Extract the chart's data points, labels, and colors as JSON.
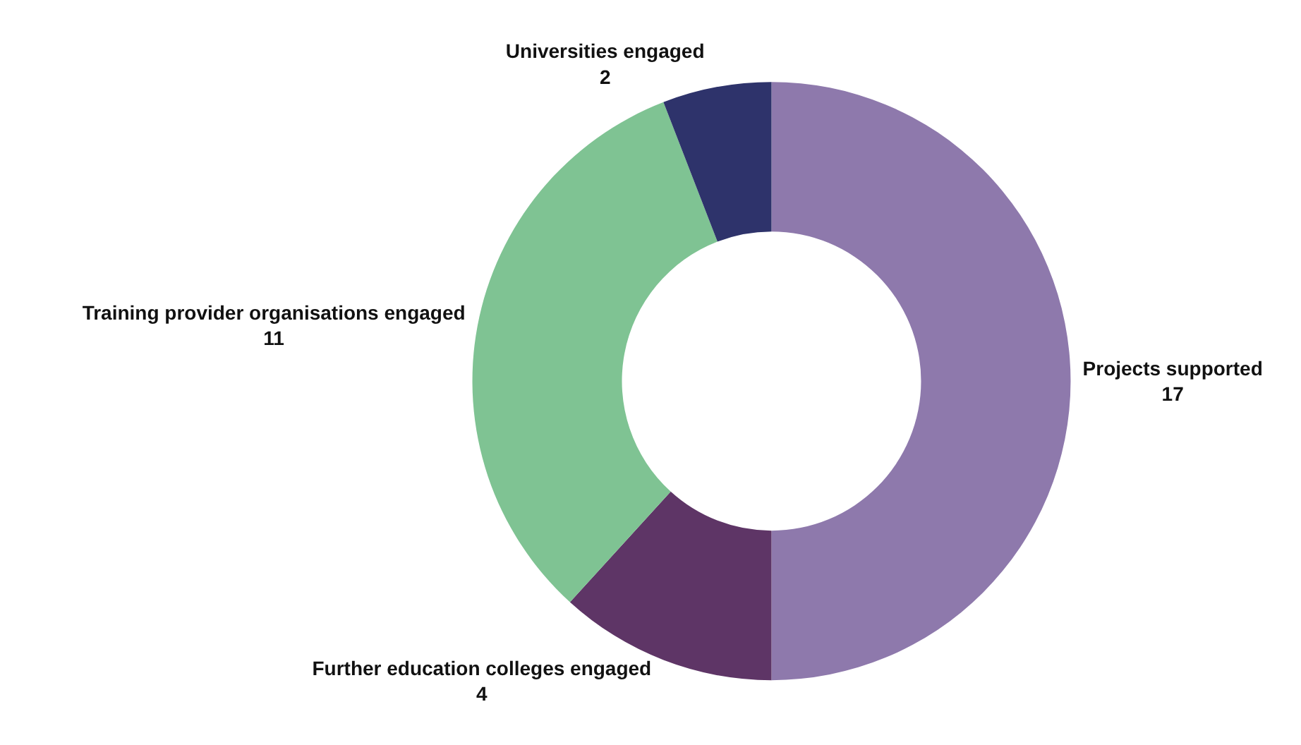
{
  "chart_data": {
    "type": "donut",
    "categories": [
      "Projects supported",
      "Further education colleges engaged",
      "Training provider organisations engaged",
      "Universities engaged"
    ],
    "values": [
      17,
      4,
      11,
      2
    ],
    "colors": [
      "#8e79ac",
      "#5e3566",
      "#7fc393",
      "#2e336b"
    ],
    "data_labels": true,
    "legend": false
  }
}
